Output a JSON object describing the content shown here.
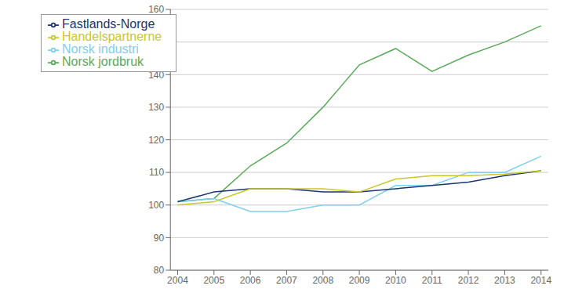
{
  "chart_data": {
    "type": "line",
    "x": [
      2004,
      2005,
      2006,
      2007,
      2008,
      2009,
      2010,
      2011,
      2012,
      2013,
      2014
    ],
    "series": [
      {
        "name": "Norsk jordbruk",
        "color": "#5aaa5a",
        "values": [
          101,
          102,
          112,
          119,
          130,
          143,
          148,
          141,
          146,
          150,
          155
        ]
      },
      {
        "name": "Norsk industri",
        "color": "#7ecfee",
        "values": [
          101,
          102,
          98,
          98,
          100,
          100,
          106,
          106,
          110,
          110,
          115
        ]
      },
      {
        "name": "Fastlands-Norge",
        "color": "#1a3570",
        "values": [
          101,
          104,
          105,
          105,
          104,
          104,
          105,
          106,
          107,
          109,
          110.5
        ]
      },
      {
        "name": "Handelspartnerne",
        "color": "#c8c828",
        "values": [
          100,
          101,
          105,
          105,
          105,
          104,
          108,
          109,
          109,
          109.5,
          110.5
        ]
      }
    ],
    "xlim": [
      2003.8,
      2014.2
    ],
    "xticks": [
      2004,
      2005,
      2006,
      2007,
      2008,
      2009,
      2010,
      2011,
      2012,
      2013,
      2014
    ],
    "ylim": [
      80,
      160
    ],
    "yticks": [
      80,
      90,
      100,
      110,
      120,
      130,
      140,
      150,
      160
    ],
    "grid": true,
    "legend": "upper left"
  }
}
